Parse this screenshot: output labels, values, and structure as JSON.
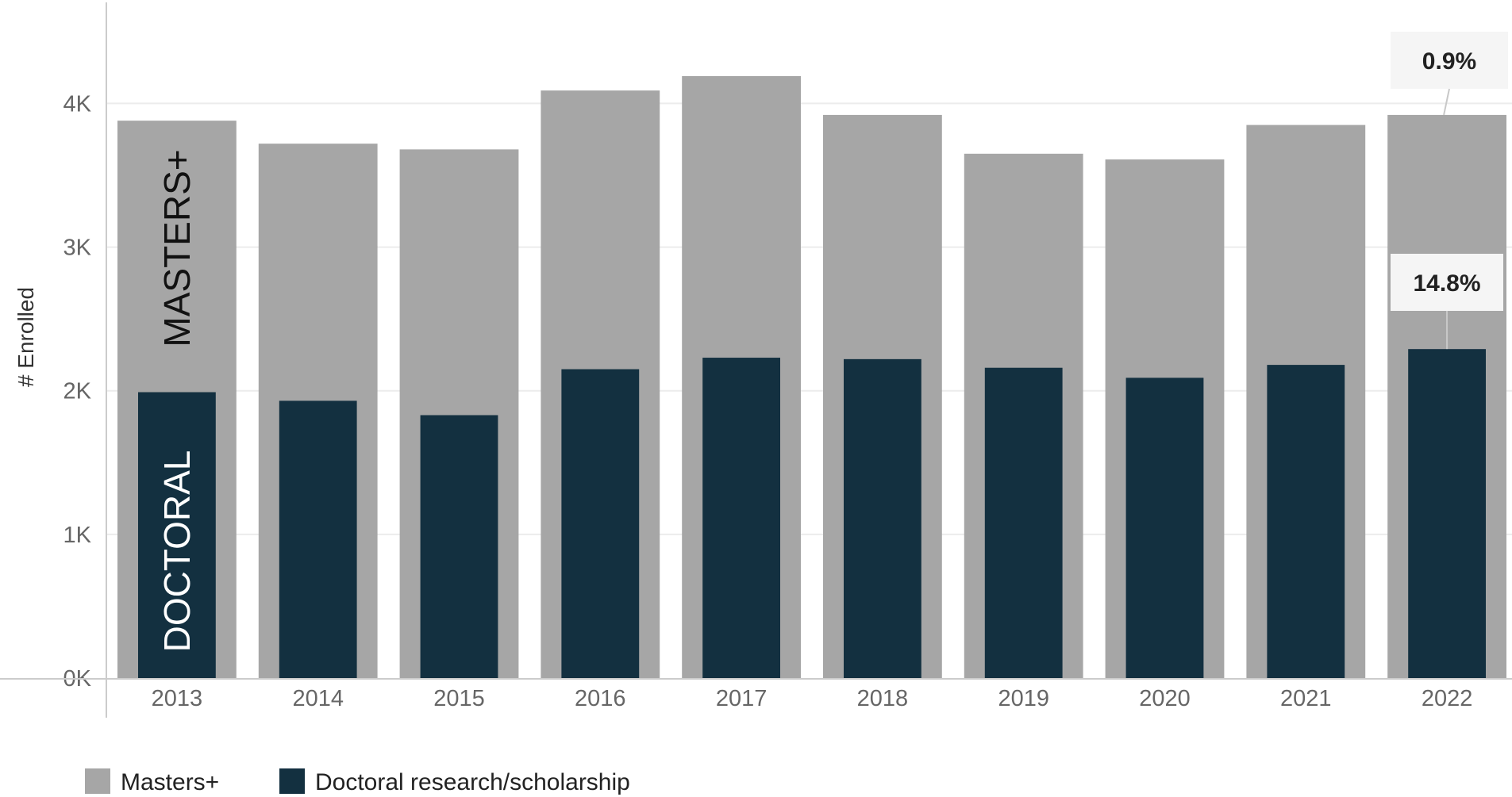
{
  "chart_data": {
    "type": "bar",
    "overlay": true,
    "categories": [
      "2013",
      "2014",
      "2015",
      "2016",
      "2017",
      "2018",
      "2019",
      "2020",
      "2021",
      "2022"
    ],
    "series": [
      {
        "name": "Masters+",
        "color": "#a6a6a6",
        "values": [
          3880,
          3720,
          3680,
          4090,
          4190,
          3920,
          3650,
          3610,
          3850,
          3920
        ]
      },
      {
        "name": "Doctoral research/scholarship",
        "color": "#133040",
        "values": [
          1990,
          1930,
          1830,
          2150,
          2230,
          2220,
          2160,
          2090,
          2180,
          2290
        ]
      }
    ],
    "ylabel": "# Enrolled",
    "xlabel": "",
    "ylim": [
      0,
      4720
    ],
    "yticks": [
      {
        "value": 0,
        "label": "0K"
      },
      {
        "value": 1000,
        "label": "1K"
      },
      {
        "value": 2000,
        "label": "2K"
      },
      {
        "value": 3000,
        "label": "3K"
      },
      {
        "value": 4000,
        "label": "4K"
      }
    ],
    "grid": true,
    "in_bar_labels": [
      {
        "series": 0,
        "category": "2013",
        "text": "MASTERS+",
        "color": "#111111"
      },
      {
        "series": 1,
        "category": "2013",
        "text": "DOCTORAL",
        "color": "#ffffff"
      }
    ],
    "callouts": [
      {
        "series": 0,
        "category": "2022",
        "text": "0.9%"
      },
      {
        "series": 1,
        "category": "2022",
        "text": "14.8%"
      }
    ],
    "legend_position": "bottom-left"
  }
}
